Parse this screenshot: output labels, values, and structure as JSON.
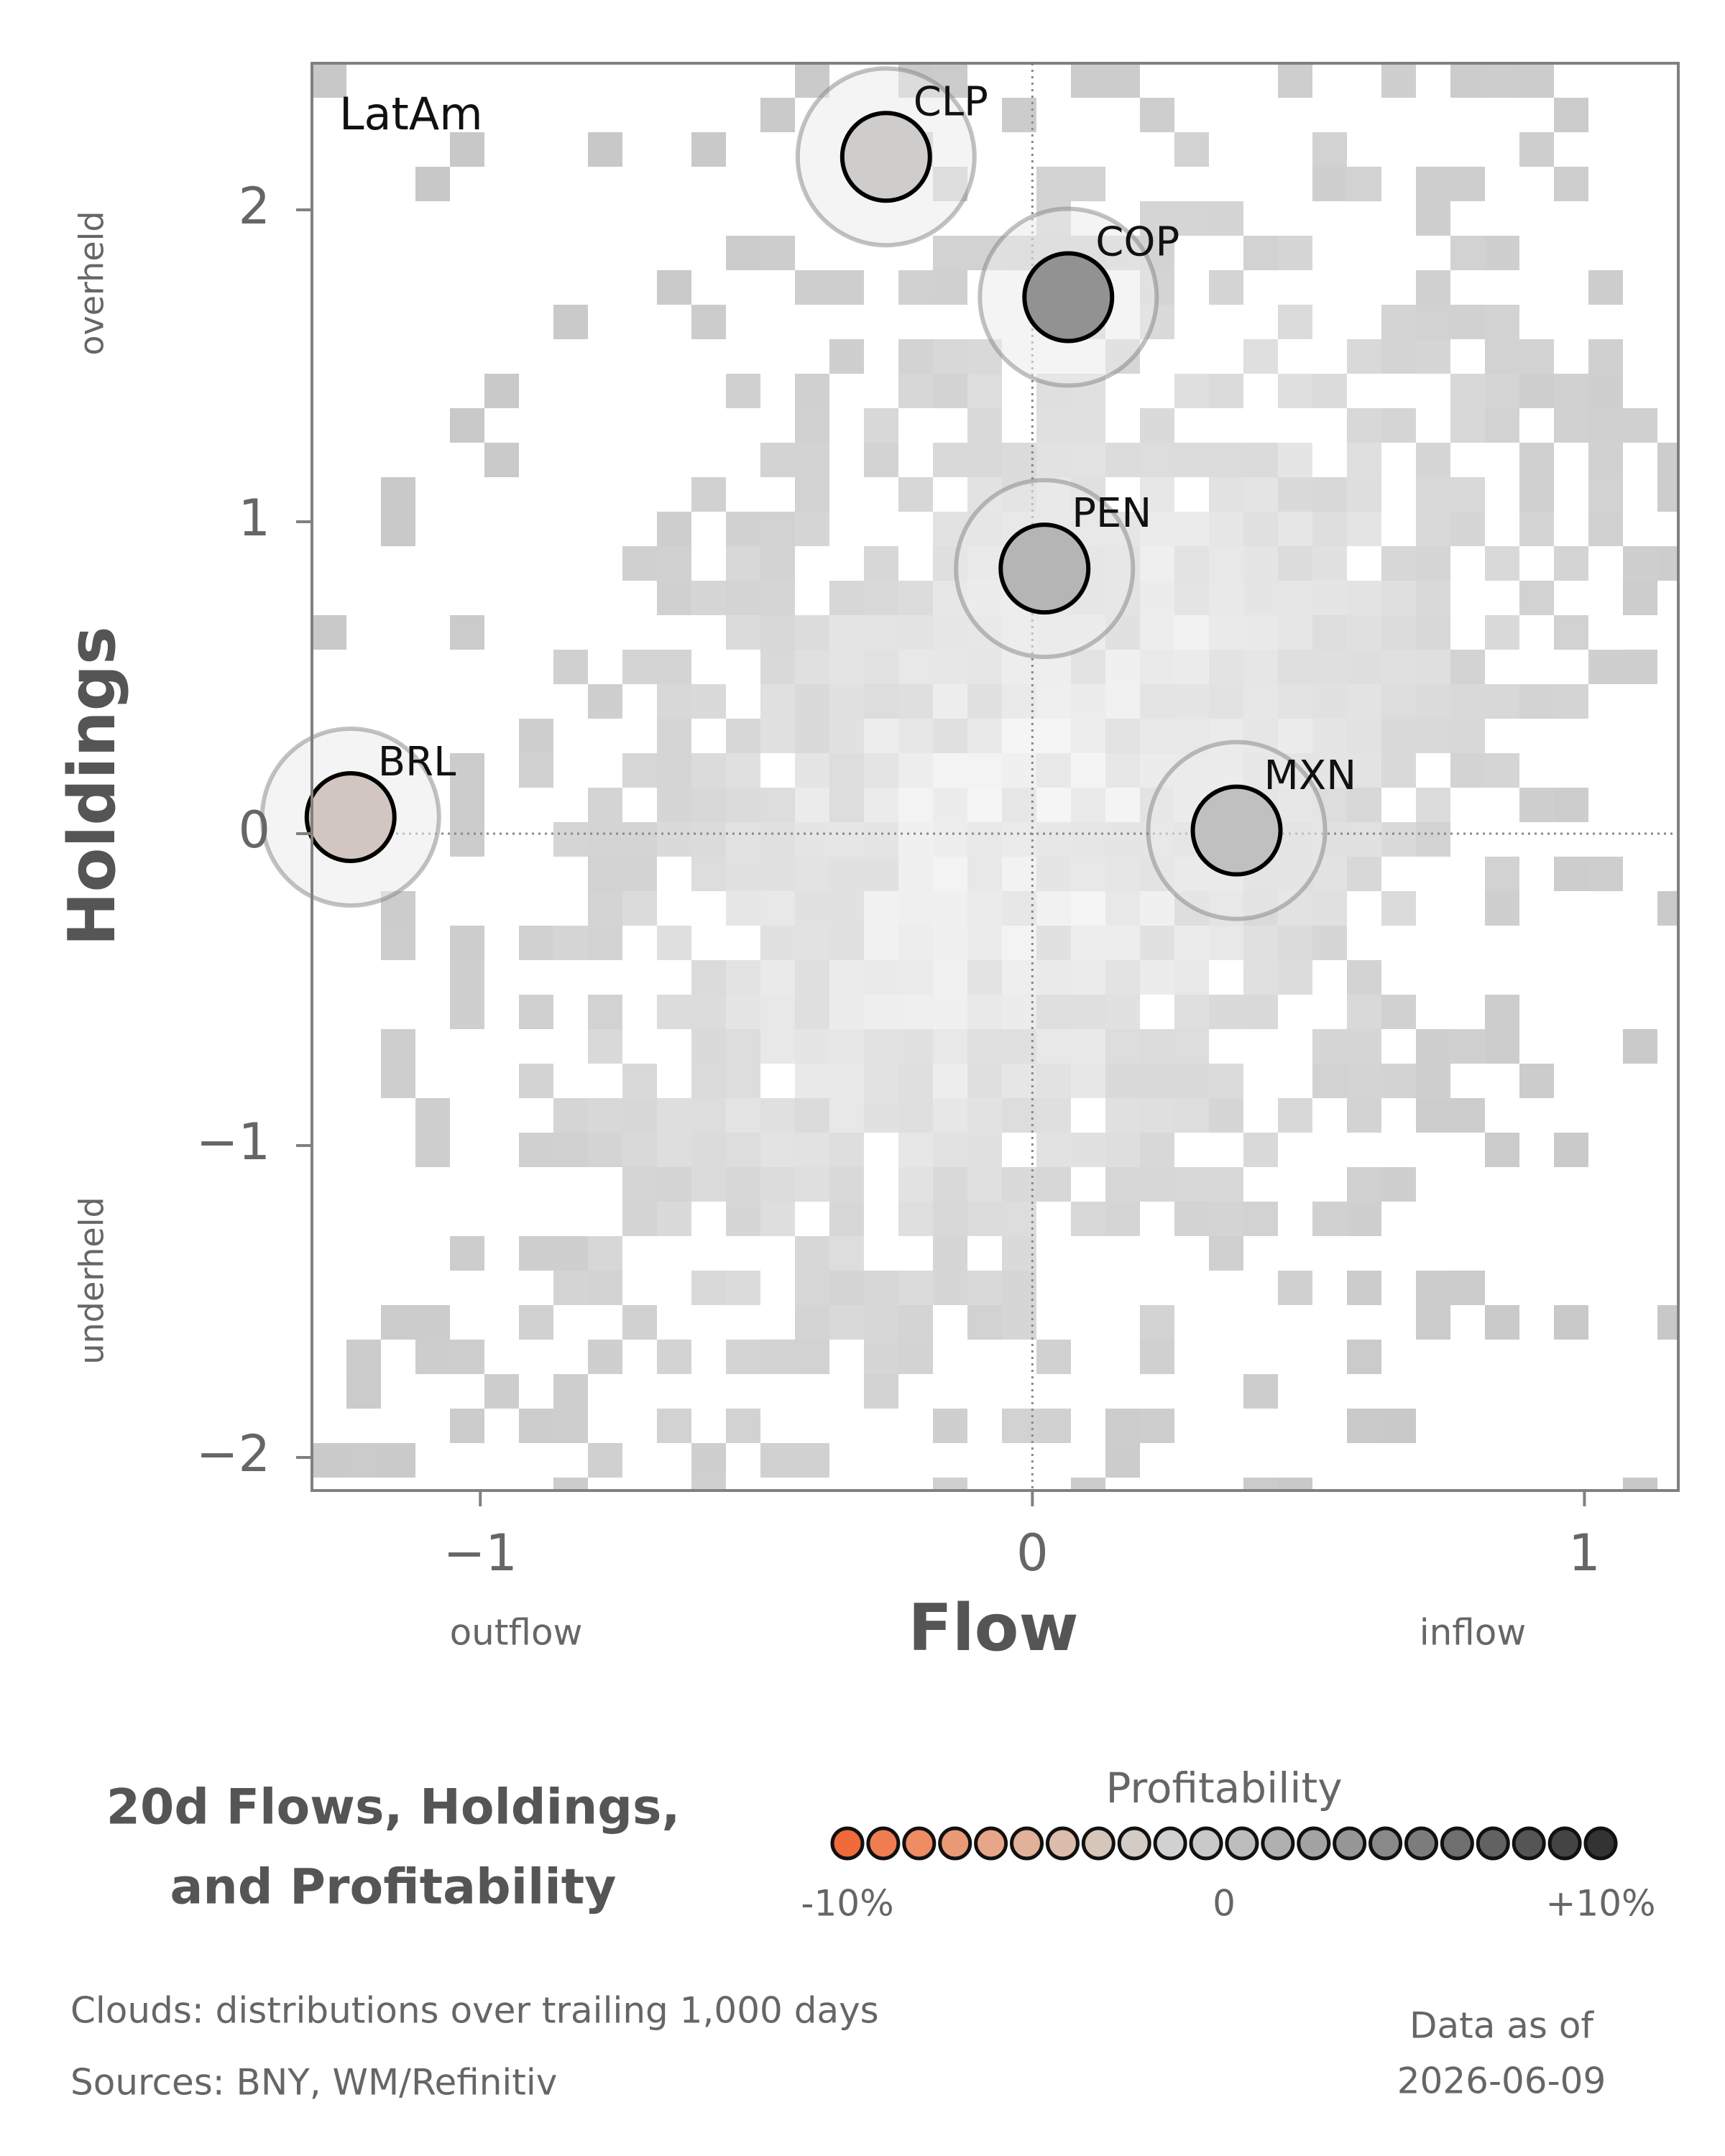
{
  "chart_data": {
    "type": "scatter",
    "panel_label": "LatAm",
    "xlabel": "Flow",
    "ylabel": "Holdings",
    "x_low_label": "outflow",
    "x_high_label": "inflow",
    "y_high_label": "overheld",
    "y_low_label": "underheld",
    "xlim": [
      -1.305,
      1.17
    ],
    "ylim": [
      -2.106,
      2.47
    ],
    "xticks": [
      {
        "value": -1,
        "label": "−1"
      },
      0,
      1
    ],
    "yticks": [
      {
        "value": -2,
        "label": "−2"
      },
      {
        "value": -1,
        "label": "−1"
      },
      0,
      1,
      2
    ],
    "points": {
      "labels": [
        "CLP",
        "COP",
        "PEN",
        "BRL",
        "MXN"
      ],
      "x": [
        -0.265,
        0.065,
        0.022,
        -1.235,
        0.37
      ],
      "y": [
        2.17,
        1.72,
        0.85,
        0.053,
        0.01
      ],
      "colors": [
        "#cfcdcb",
        "#929292",
        "#b5b5b5",
        "#d2c6c0",
        "#c0c0c0"
      ]
    },
    "title_lines": [
      "20d Flows, Holdings,",
      "and Profitability"
    ],
    "colorbar": {
      "label": "Profitability",
      "colors": [
        "#f16a3a",
        "#f07d52",
        "#ee8c64",
        "#eb9a76",
        "#e7a688",
        "#e2b199",
        "#dcbcaa",
        "#d6c6ba",
        "#d2cbc6",
        "#d1d1d1",
        "#c9c9c9",
        "#bdbdbd",
        "#b0b0b0",
        "#a3a3a3",
        "#969696",
        "#898989",
        "#7c7c7c",
        "#6f6f6f",
        "#626262",
        "#555555",
        "#444444",
        "#333333"
      ],
      "lim": [
        -10,
        10
      ],
      "ticks": [
        {
          "value": -10,
          "label": "-10%"
        },
        0,
        {
          "value": 10,
          "label": "+10%"
        }
      ]
    },
    "notes": [
      "Clouds:  distributions over trailing 1,000 days",
      "Sources:  BNY, WM/Refinitiv"
    ],
    "date_lines": [
      "Data as of",
      "2026-06-09"
    ]
  }
}
